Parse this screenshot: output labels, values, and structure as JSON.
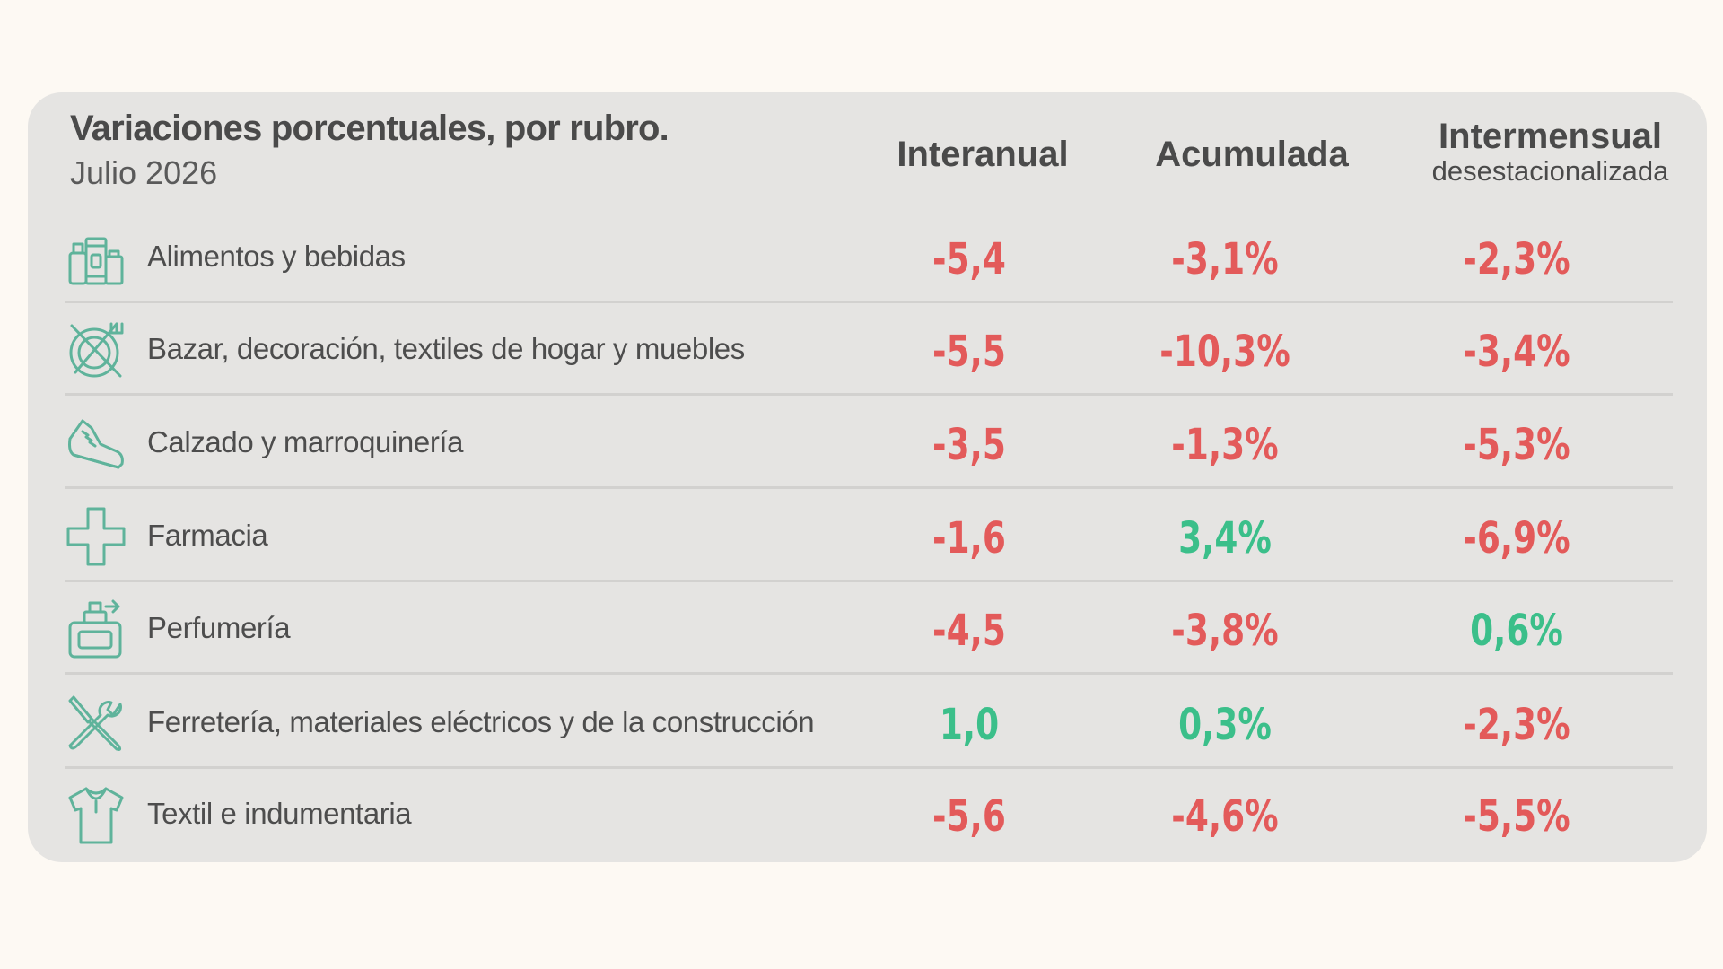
{
  "colors": {
    "negative": "#e35a5a",
    "positive": "#3bbf8a",
    "icon": "#5fb39b"
  },
  "header": {
    "title": "Variaciones porcentuales, por rubro.",
    "subtitle": "Julio 2026",
    "col1": "Interanual",
    "col2": "Acumulada",
    "col3": "Intermensual",
    "col3_sub": "desestacionalizada"
  },
  "chart_data": {
    "type": "table",
    "title": "Variaciones porcentuales, por rubro.",
    "subtitle": "Julio 2026",
    "columns": [
      "Interanual",
      "Acumulada",
      "Intermensual desestacionalizada"
    ],
    "rows": [
      {
        "icon": "groceries-icon",
        "label": "Alimentos y bebidas",
        "interanual": "-5,4",
        "acumulada": "-3,1%",
        "intermensual": "-2,3%"
      },
      {
        "icon": "plate-cutlery-icon",
        "label": "Bazar, decoración, textiles de hogar y muebles",
        "interanual": "-5,5",
        "acumulada": "-10,3%",
        "intermensual": "-3,4%"
      },
      {
        "icon": "shoe-icon",
        "label": "Calzado y marroquinería",
        "interanual": "-3,5",
        "acumulada": "-1,3%",
        "intermensual": "-5,3%"
      },
      {
        "icon": "cross-icon",
        "label": "Farmacia",
        "interanual": "-1,6",
        "acumulada": "3,4%",
        "intermensual": "-6,9%"
      },
      {
        "icon": "perfume-icon",
        "label": "Perfumería",
        "interanual": "-4,5",
        "acumulada": "-3,8%",
        "intermensual": "0,6%"
      },
      {
        "icon": "tools-icon",
        "label": "Ferretería, materiales eléctricos y de la construcción",
        "interanual": "1,0",
        "acumulada": "0,3%",
        "intermensual": "-2,3%"
      },
      {
        "icon": "shirt-icon",
        "label": "Textil e indumentaria",
        "interanual": "-5,6",
        "acumulada": "-4,6%",
        "intermensual": "-5,5%"
      }
    ]
  }
}
